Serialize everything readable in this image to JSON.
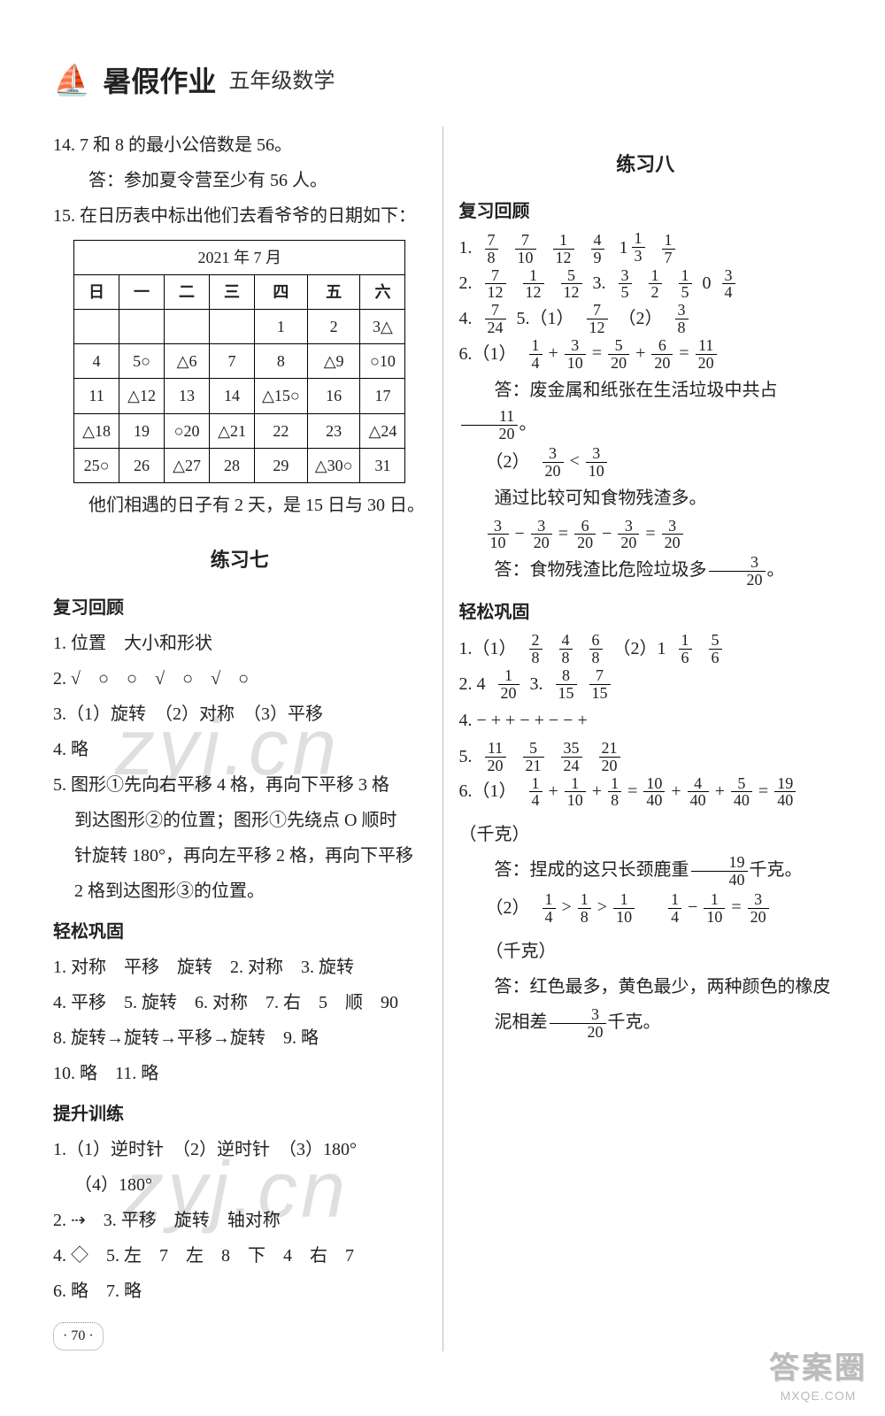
{
  "header": {
    "book_title": "暑假作业",
    "subtitle": "五年级数学"
  },
  "left": {
    "l14a": "14. 7 和 8 的最小公倍数是 56。",
    "l14b": "答：参加夏令营至少有 56 人。",
    "l15": "15. 在日历表中标出他们去看爷爷的日期如下：",
    "calendar": {
      "caption": "2021 年 7 月",
      "weekdays": [
        "日",
        "一",
        "二",
        "三",
        "四",
        "五",
        "六"
      ],
      "rows": [
        [
          "",
          "",
          "",
          "",
          "1",
          "2",
          "3△"
        ],
        [
          "4",
          "5○",
          "△6",
          "7",
          "8",
          "△9",
          "○10"
        ],
        [
          "11",
          "△12",
          "13",
          "14",
          "△15○",
          "16",
          "17"
        ],
        [
          "△18",
          "19",
          "○20",
          "△21",
          "22",
          "23",
          "△24"
        ],
        [
          "25○",
          "26",
          "△27",
          "28",
          "29",
          "△30○",
          "31"
        ]
      ]
    },
    "l15_after": "他们相遇的日子有 2 天，是 15 日与 30 日。",
    "ex7_title": "练习七",
    "fx_heading": "复习回顾",
    "fx1": "1. 位置　大小和形状",
    "fx2": "2. √　○　○　√　○　√　○",
    "fx3": "3.（1）旋转　（2）对称　（3）平移",
    "fx4": "4. 略",
    "fx5a": "5. 图形①先向右平移 4 格，再向下平移 3 格",
    "fx5b": "到达图形②的位置；图形①先绕点 O 顺时",
    "fx5c": "针旋转 180°，再向左平移 2 格，再向下平移",
    "fx5d": "2 格到达图形③的位置。",
    "qg_heading": "轻松巩固",
    "qg1": "1. 对称　平移　旋转　2. 对称　3. 旋转",
    "qg2": "4. 平移　5. 旋转　6. 对称　7. 右　5　顺　90",
    "qg3": "8. 旋转→旋转→平移→旋转　9. 略",
    "qg4": "10. 略　11. 略",
    "tx_heading": "提升训练",
    "tx1a": "1.（1）逆时针　（2）逆时针　（3）180°",
    "tx1b": "（4）180°",
    "tx2": "2. ⇢　3. 平移　旋转　轴对称",
    "tx3": "4. ◇　5. 左　7　左　8　下　4　右　7",
    "tx4": "6. 略　7. 略",
    "page_num": "· 70 ·"
  },
  "right": {
    "ex8_title": "练习八",
    "fx_heading": "复习回顾",
    "line1_label": "1.",
    "line1": [
      {
        "n": "7",
        "d": "8"
      },
      {
        "n": "7",
        "d": "10"
      },
      {
        "n": "1",
        "d": "12"
      },
      {
        "n": "4",
        "d": "9"
      },
      {
        "mixed_int": "1",
        "n": "1",
        "d": "3"
      },
      {
        "n": "1",
        "d": "7"
      }
    ],
    "line2_label": "2.",
    "line2_part": [
      {
        "n": "7",
        "d": "12"
      },
      {
        "n": "1",
        "d": "12"
      },
      {
        "n": "5",
        "d": "12"
      }
    ],
    "line2_3label": "3.",
    "line2_3": [
      {
        "n": "3",
        "d": "5"
      },
      {
        "n": "1",
        "d": "2"
      },
      {
        "n": "1",
        "d": "5"
      }
    ],
    "line2_tail": "0",
    "line2_last": {
      "n": "3",
      "d": "4"
    },
    "line4_label": "4.",
    "line4_frac": {
      "n": "7",
      "d": "24"
    },
    "line5_label": "5.（1）",
    "line5_f1": {
      "n": "7",
      "d": "12"
    },
    "line5_label2": "（2）",
    "line5_f2": {
      "n": "3",
      "d": "8"
    },
    "line6_label": "6.（1）",
    "eq6": {
      "a": {
        "n": "1",
        "d": "4"
      },
      "b": {
        "n": "3",
        "d": "10"
      },
      "c": {
        "n": "5",
        "d": "20"
      },
      "d": {
        "n": "6",
        "d": "20"
      },
      "e": {
        "n": "11",
        "d": "20"
      }
    },
    "ans6a_pre": "答：废金属和纸张在生活垃圾中共占",
    "ans6a_frac": {
      "n": "11",
      "d": "20"
    },
    "ans6a_post": "。",
    "line6_2label": "（2）",
    "cmp6": {
      "a": {
        "n": "3",
        "d": "20"
      },
      "op": "<",
      "b": {
        "n": "3",
        "d": "10"
      }
    },
    "line6_txt": "通过比较可知食物残渣多。",
    "eq6b": {
      "a": {
        "n": "3",
        "d": "10"
      },
      "b": {
        "n": "3",
        "d": "20"
      },
      "c": {
        "n": "6",
        "d": "20"
      },
      "d": {
        "n": "3",
        "d": "20"
      },
      "e": {
        "n": "3",
        "d": "20"
      }
    },
    "ans6b_pre": "答：食物残渣比危险垃圾多",
    "ans6b_frac": {
      "n": "3",
      "d": "20"
    },
    "ans6b_post": "。",
    "qg_heading": "轻松巩固",
    "qg1_label": "1.（1）",
    "qg1_a": [
      {
        "n": "2",
        "d": "8"
      },
      {
        "n": "4",
        "d": "8"
      },
      {
        "n": "6",
        "d": "8"
      }
    ],
    "qg1_label2": "（2）1",
    "qg1_b": [
      {
        "n": "1",
        "d": "6"
      },
      {
        "n": "5",
        "d": "6"
      }
    ],
    "qg2_label": "2. 4",
    "qg2_frac": {
      "n": "1",
      "d": "20"
    },
    "qg2_label3": "3.",
    "qg2_f3a": {
      "n": "8",
      "d": "15"
    },
    "qg2_f3b": {
      "n": "7",
      "d": "15"
    },
    "qg4": "4.  −   +   +   −   +   −   −   +",
    "qg5_label": "5.",
    "qg5": [
      {
        "n": "11",
        "d": "20"
      },
      {
        "n": "5",
        "d": "21"
      },
      {
        "n": "35",
        "d": "24"
      },
      {
        "n": "21",
        "d": "20"
      }
    ],
    "qg6_label": "6.（1）",
    "eq_qg6": {
      "a": {
        "n": "1",
        "d": "4"
      },
      "b": {
        "n": "1",
        "d": "10"
      },
      "c": {
        "n": "1",
        "d": "8"
      },
      "d": {
        "n": "10",
        "d": "40"
      },
      "e": {
        "n": "4",
        "d": "40"
      },
      "f": {
        "n": "5",
        "d": "40"
      },
      "g": {
        "n": "19",
        "d": "40"
      }
    },
    "qg6_unit": "（千克）",
    "qg6_ans_pre": "答：捏成的这只长颈鹿重",
    "qg6_ans_frac": {
      "n": "19",
      "d": "40"
    },
    "qg6_ans_post": "千克。",
    "qg6_2label": "（2）",
    "cmp_qg6a": {
      "a": {
        "n": "1",
        "d": "4"
      },
      "op": ">",
      "b": {
        "n": "1",
        "d": "8"
      },
      "op2": ">",
      "c": {
        "n": "1",
        "d": "10"
      }
    },
    "eq_qg6b": {
      "a": {
        "n": "1",
        "d": "4"
      },
      "b": {
        "n": "1",
        "d": "10"
      },
      "c": {
        "n": "3",
        "d": "20"
      }
    },
    "qg6b_unit": "（千克）",
    "qg6b_ans1": "答：红色最多，黄色最少，两种颜色的橡皮",
    "qg6b_ans2_pre": "泥相差",
    "qg6b_ans2_frac": {
      "n": "3",
      "d": "20"
    },
    "qg6b_ans2_post": "千克。"
  },
  "badge": {
    "big": "答案圈",
    "small": "MXQE.COM"
  },
  "watermark": "zyj.cn"
}
